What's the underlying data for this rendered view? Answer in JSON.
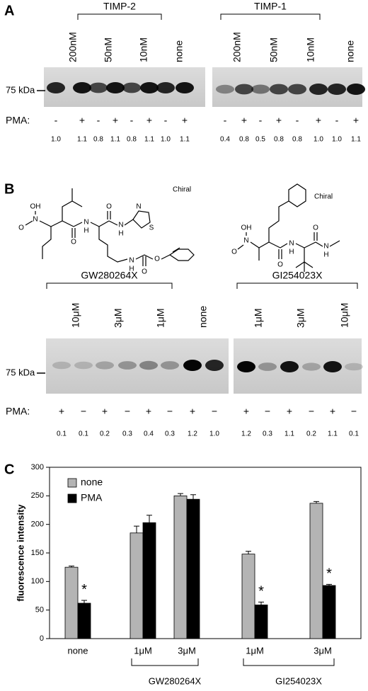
{
  "panel_a": {
    "label": "A",
    "marker": "75 kDa",
    "pma_label": "PMA:",
    "groups": [
      {
        "name": "TIMP-2",
        "lanes": [
          "200nM",
          "50nM",
          "10nM",
          "none"
        ],
        "pma": [
          "-",
          "+",
          "-",
          "+",
          "-",
          "+",
          "-",
          "+"
        ],
        "quant": [
          "1.0",
          "1.1",
          "0.8",
          "1.1",
          "0.8",
          "1.1",
          "1.0",
          "1.1"
        ]
      },
      {
        "name": "TIMP-1",
        "lanes": [
          "200nM",
          "50nM",
          "10nM",
          "none"
        ],
        "pma": [
          "-",
          "+",
          "-",
          "+",
          "-",
          "+",
          "-",
          "+"
        ],
        "quant": [
          "0.4",
          "0.8",
          "0.5",
          "0.8",
          "0.8",
          "1.0",
          "1.0",
          "1.1"
        ]
      }
    ]
  },
  "panel_b": {
    "label": "B",
    "marker": "75 kDa",
    "pma_label": "PMA:",
    "structures": [
      {
        "chiral": "Chiral",
        "atoms": [
          "OH",
          "N",
          "O",
          "O",
          "N",
          "H",
          "O",
          "N",
          "H",
          "N",
          "S",
          "N",
          "H",
          "O",
          "O"
        ]
      },
      {
        "chiral": "Chiral",
        "atoms": [
          "OH",
          "N",
          "O",
          "O",
          "N",
          "H",
          "O",
          "N",
          "H"
        ]
      }
    ],
    "groups": [
      {
        "name": "GW280264X",
        "lanes": [
          "10μM",
          "3μM",
          "1μM",
          "none"
        ],
        "pma": [
          "+",
          "−",
          "+",
          "−",
          "+",
          "−",
          "+",
          "−"
        ],
        "quant": [
          "0.1",
          "0.1",
          "0.2",
          "0.3",
          "0.4",
          "0.3",
          "1.2",
          "1.0"
        ]
      },
      {
        "name": "GI254023X",
        "lanes": [
          "1μM",
          "3μM",
          "10μM"
        ],
        "pma": [
          "+",
          "−",
          "+",
          "−",
          "+",
          "−"
        ],
        "quant": [
          "1.2",
          "0.3",
          "1.1",
          "0.2",
          "1.1",
          "0.1"
        ]
      }
    ]
  },
  "chart_data": {
    "type": "bar",
    "panel_label": "C",
    "ylabel": "fluorescence intensity",
    "categories": [
      "none",
      "1μM",
      "3μM",
      "1μM",
      "3μM"
    ],
    "groups": [
      {
        "label": "GW280264X",
        "categories": [
          1,
          2
        ]
      },
      {
        "label": "GI254023X",
        "categories": [
          3,
          4
        ]
      }
    ],
    "series": [
      {
        "name": "none",
        "color": "#b4b4b4",
        "values": [
          125,
          185,
          250,
          148,
          237
        ],
        "errors": [
          2,
          12,
          4,
          5,
          3
        ]
      },
      {
        "name": "PMA",
        "color": "#000000",
        "values": [
          62,
          203,
          244,
          59,
          93
        ],
        "errors": [
          5,
          13,
          8,
          5,
          2
        ]
      }
    ],
    "annotations": [
      {
        "text": "*",
        "category": 0,
        "series": 1
      },
      {
        "text": "*",
        "category": 3,
        "series": 1
      },
      {
        "text": "*",
        "category": 4,
        "series": 1
      }
    ],
    "ylim": [
      0,
      300
    ],
    "yticks": [
      0,
      50,
      100,
      150,
      200,
      250,
      300
    ],
    "legend": "upper left"
  }
}
